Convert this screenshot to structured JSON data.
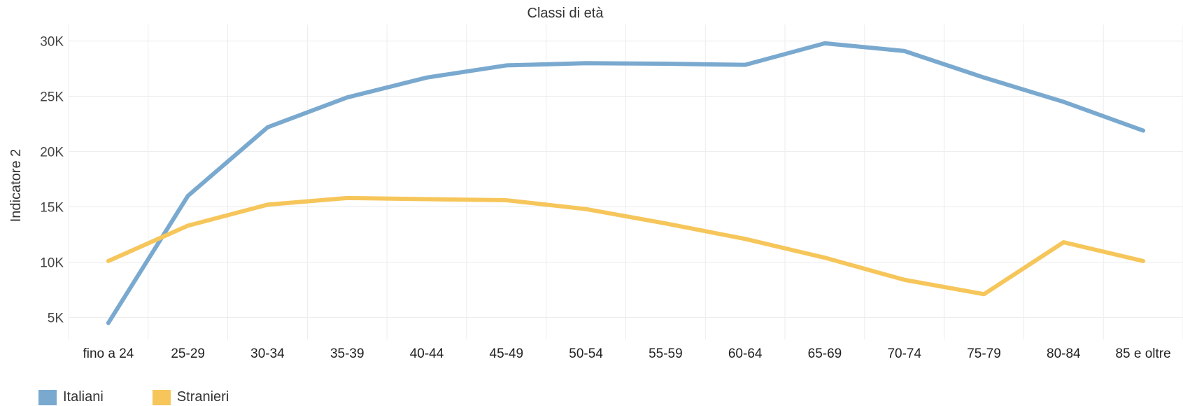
{
  "chart_data": {
    "type": "line",
    "title": "Classi di età",
    "xlabel": "",
    "ylabel": "Indicatore 2",
    "categories": [
      "fino a 24",
      "25-29",
      "30-34",
      "35-39",
      "40-44",
      "45-49",
      "50-54",
      "55-59",
      "60-64",
      "65-69",
      "70-74",
      "75-79",
      "80-84",
      "85 e oltre"
    ],
    "series": [
      {
        "name": "Italiani",
        "color": "#7aa9cf",
        "values": [
          4500,
          16000,
          22200,
          24900,
          26700,
          27800,
          28000,
          27950,
          27850,
          29800,
          29100,
          26700,
          24500,
          21900
        ]
      },
      {
        "name": "Stranieri",
        "color": "#f6c65b",
        "values": [
          10100,
          13300,
          15200,
          15800,
          15700,
          15600,
          14800,
          13500,
          12100,
          10400,
          8400,
          7100,
          11800,
          10100
        ]
      }
    ],
    "yticks": [
      5000,
      10000,
      15000,
      20000,
      25000,
      30000
    ],
    "ytick_labels": [
      "5K",
      "10K",
      "15K",
      "20K",
      "25K",
      "30K"
    ],
    "ylim": [
      3000,
      31500
    ],
    "grid": true,
    "legend_position": "bottom-left"
  }
}
